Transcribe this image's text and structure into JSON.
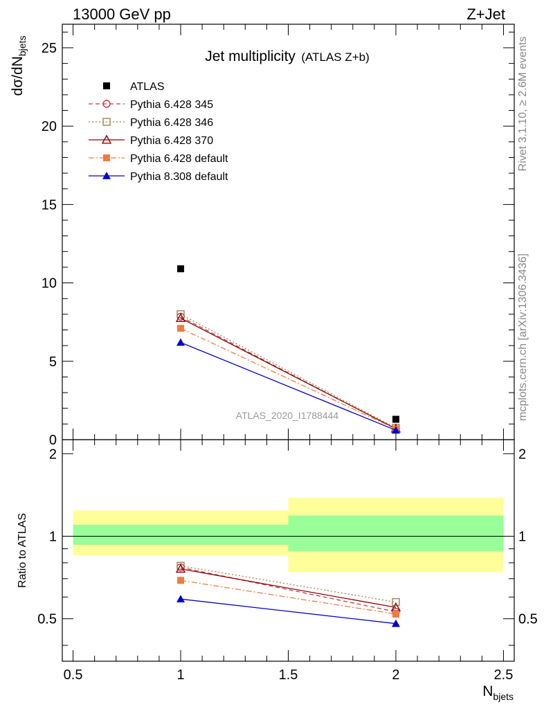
{
  "header": {
    "left": "13000 GeV pp",
    "right": "Z+Jet"
  },
  "side_labels": {
    "rivet": "Rivet 3.1.10, ≥ 2.6M events",
    "mcplots": "mcplots.cern.ch [arXiv:1306.3436]"
  },
  "chart_data": {
    "type": "scatter",
    "title": "Jet multiplicity",
    "title_suffix": "(ATLAS Z+b)",
    "analysis_label": "ATLAS_2020_I1788444",
    "xlabel_main": "N",
    "xlabel_sub": "bjets",
    "ylabel_main": "dσ/dN",
    "ylabel_sub": "bjets",
    "ratio_ylabel": "Ratio to ATLAS",
    "xlim": [
      0.45,
      2.55
    ],
    "ylim": [
      0,
      26.5
    ],
    "ratio_ylim": [
      0.35,
      2.25
    ],
    "x_ticks": [
      0.5,
      1,
      1.5,
      2,
      2.5
    ],
    "x_tick_labels": [
      "0.5",
      "1",
      "1.5",
      "2",
      "2.5"
    ],
    "y_ticks": [
      0,
      5,
      10,
      15,
      20,
      25
    ],
    "y_tick_labels": [
      "0",
      "5",
      "10",
      "15",
      "20",
      "25"
    ],
    "ratio_y_ticks": [
      0.5,
      1,
      2
    ],
    "ratio_y_tick_labels": [
      "0.5",
      "1",
      "2"
    ],
    "legend_placement": "top-left",
    "x": [
      1,
      2
    ],
    "series": [
      {
        "name": "ATLAS",
        "values": [
          10.9,
          1.3
        ],
        "color": "#000000",
        "marker": "square-filled",
        "line": "none"
      },
      {
        "name": "Pythia 6.428 345",
        "values": [
          7.85,
          0.68
        ],
        "color": "#c0394b",
        "marker": "circle-open",
        "line": "dashed"
      },
      {
        "name": "Pythia 6.428 346",
        "values": [
          8.0,
          0.75
        ],
        "color": "#a0844c",
        "marker": "square-open",
        "line": "dotted"
      },
      {
        "name": "Pythia 6.428 370",
        "values": [
          7.75,
          0.7
        ],
        "color": "#8b0000",
        "marker": "triangle-open",
        "line": "solid"
      },
      {
        "name": "Pythia 6.428 default",
        "values": [
          7.1,
          0.68
        ],
        "color": "#f07c3c",
        "marker": "square-filled",
        "line": "dashdot"
      },
      {
        "name": "Pythia 8.308 default",
        "values": [
          6.2,
          0.6
        ],
        "color": "#0000cc",
        "marker": "triangle-filled",
        "line": "solid"
      }
    ],
    "ratio": {
      "bands": [
        {
          "x_range": [
            0.5,
            1.5
          ],
          "outer": [
            0.85,
            1.24
          ],
          "inner": [
            0.93,
            1.1
          ]
        },
        {
          "x_range": [
            1.5,
            2.5
          ],
          "outer": [
            0.74,
            1.38
          ],
          "inner": [
            0.88,
            1.19
          ]
        }
      ],
      "band_colors": {
        "outer": "#ffff99",
        "inner": "#99ff99"
      },
      "series": [
        {
          "name": "Pythia 6.428 345",
          "values": [
            0.77,
            0.53
          ]
        },
        {
          "name": "Pythia 6.428 346",
          "values": [
            0.78,
            0.575
          ]
        },
        {
          "name": "Pythia 6.428 370",
          "values": [
            0.76,
            0.55
          ]
        },
        {
          "name": "Pythia 6.428 default",
          "values": [
            0.69,
            0.52
          ]
        },
        {
          "name": "Pythia 8.308 default",
          "values": [
            0.59,
            0.48
          ]
        }
      ]
    }
  }
}
